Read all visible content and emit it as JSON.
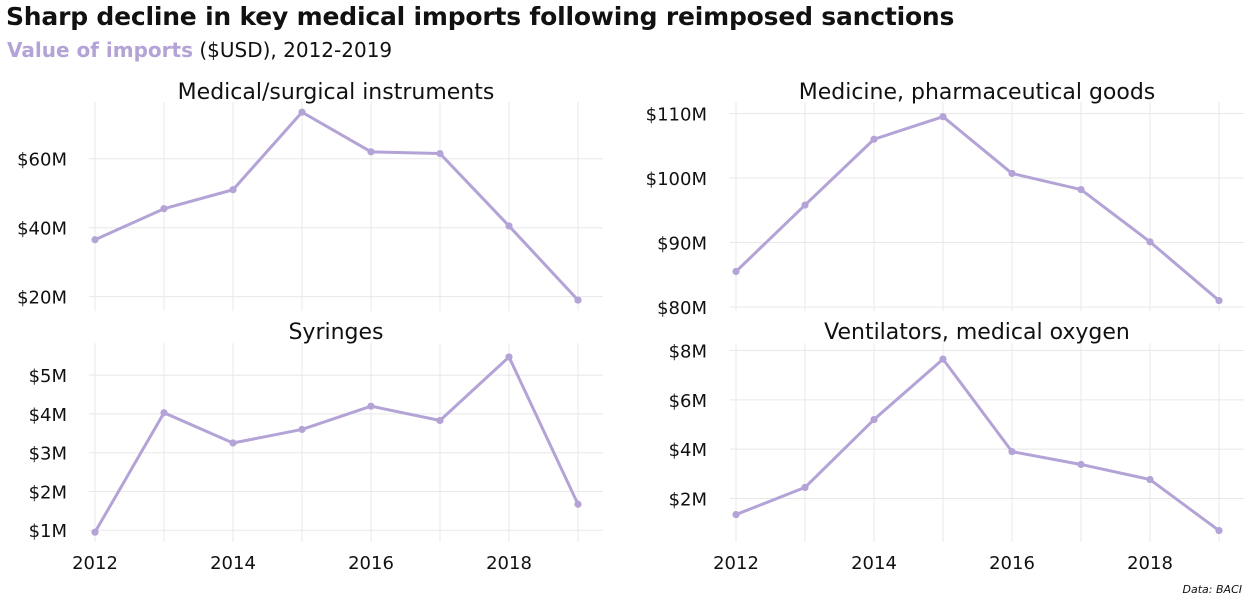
{
  "header": {
    "title": "Sharp decline in key medical imports following reimposed sanctions",
    "subtitle_strong": "Value of imports",
    "subtitle_rest": " ($USD), 2012-2019"
  },
  "source": "Data: BACI",
  "colors": {
    "line": "#b4a3d6",
    "grid": "#e8e8e8",
    "text": "#111111"
  },
  "chart_data": [
    {
      "type": "line",
      "title": "Medical/surgical instruments",
      "x": [
        2012,
        2013,
        2014,
        2015,
        2016,
        2017,
        2018,
        2019
      ],
      "series": [
        {
          "values": [
            36.5,
            45.5,
            51,
            73.5,
            62,
            61.5,
            40.5,
            19
          ]
        }
      ],
      "unit": "$M",
      "ylim": [
        17,
        75
      ],
      "yticks": [
        20,
        40,
        60
      ],
      "ytick_labels": [
        "$20M",
        "$40M",
        "$60M"
      ],
      "xticks": [
        2012,
        2014,
        2016,
        2018
      ],
      "xtick_labels": [
        "",
        "",
        "",
        ""
      ],
      "grid": true
    },
    {
      "type": "line",
      "title": "Medicine, pharmaceutical goods",
      "x": [
        2012,
        2013,
        2014,
        2015,
        2016,
        2017,
        2018,
        2019
      ],
      "series": [
        {
          "values": [
            85.5,
            95.8,
            106,
            109.5,
            100.7,
            98.2,
            90.1,
            81
          ]
        }
      ],
      "unit": "$M",
      "ylim": [
        80,
        111
      ],
      "yticks": [
        80,
        90,
        100,
        110
      ],
      "ytick_labels": [
        "$80M",
        "$90M",
        "$100M",
        "$110M"
      ],
      "xticks": [
        2012,
        2014,
        2016,
        2018
      ],
      "xtick_labels": [
        "",
        "",
        "",
        ""
      ],
      "grid": true
    },
    {
      "type": "line",
      "title": "Syringes",
      "x": [
        2012,
        2013,
        2014,
        2015,
        2016,
        2017,
        2018,
        2019
      ],
      "series": [
        {
          "values": [
            0.95,
            4.03,
            3.25,
            3.6,
            4.2,
            3.83,
            5.47,
            1.67
          ]
        }
      ],
      "unit": "$M",
      "ylim": [
        0.8,
        5.7
      ],
      "yticks": [
        1,
        2,
        3,
        4,
        5
      ],
      "ytick_labels": [
        "$1M",
        "$2M",
        "$3M",
        "$4M",
        "$5M"
      ],
      "xticks": [
        2012,
        2014,
        2016,
        2018
      ],
      "xtick_labels": [
        "2012",
        "2014",
        "2016",
        "2018"
      ],
      "grid": true
    },
    {
      "type": "line",
      "title": "Ventilators, medical oxygen",
      "x": [
        2012,
        2013,
        2014,
        2015,
        2016,
        2017,
        2018,
        2019
      ],
      "series": [
        {
          "values": [
            1.35,
            2.45,
            5.2,
            7.65,
            3.9,
            3.38,
            2.77,
            0.7
          ]
        }
      ],
      "unit": "$M",
      "ylim": [
        0.4,
        8.1
      ],
      "yticks": [
        2,
        4,
        6,
        8
      ],
      "ytick_labels": [
        "$2M",
        "$4M",
        "$6M",
        "$8M"
      ],
      "xticks": [
        2012,
        2014,
        2016,
        2018
      ],
      "xtick_labels": [
        "2012",
        "2014",
        "2016",
        "2018"
      ],
      "grid": true
    }
  ]
}
